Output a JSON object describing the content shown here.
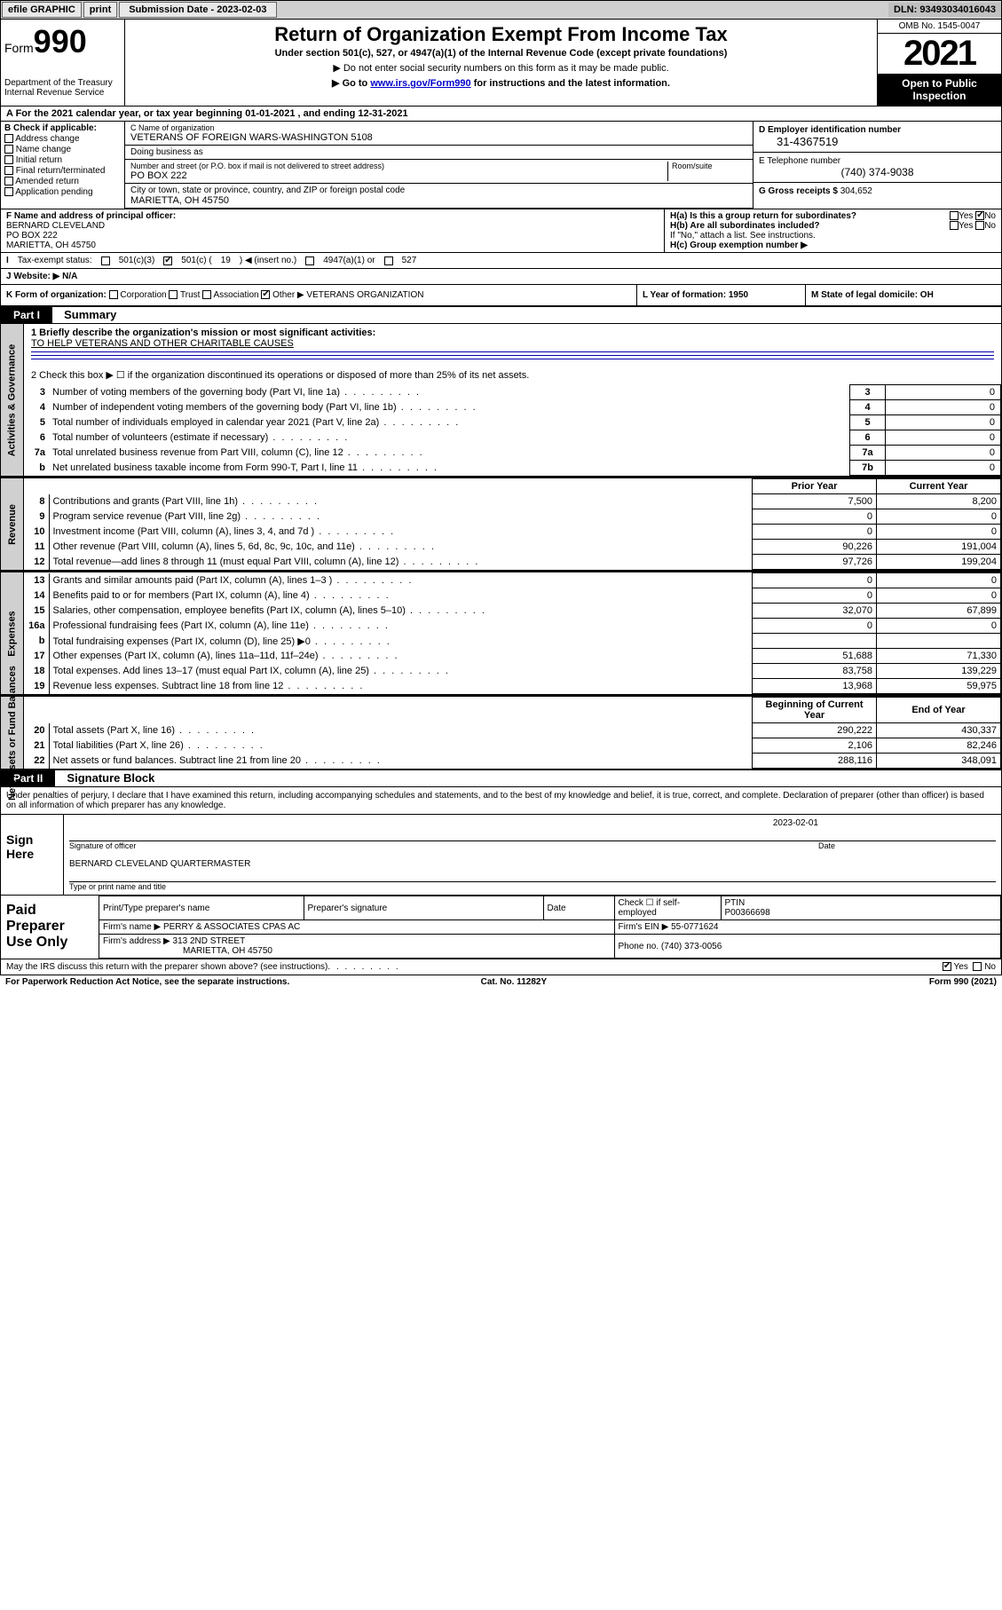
{
  "topbar": {
    "efile": "efile GRAPHIC",
    "print": "print",
    "sub_label": "Submission Date - 2023-02-03",
    "dln": "DLN: 93493034016043"
  },
  "header": {
    "form_prefix": "Form",
    "form_num": "990",
    "title": "Return of Organization Exempt From Income Tax",
    "subtitle": "Under section 501(c), 527, or 4947(a)(1) of the Internal Revenue Code (except private foundations)",
    "note1": "▶ Do not enter social security numbers on this form as it may be made public.",
    "note2_pre": "▶ Go to ",
    "note2_link": "www.irs.gov/Form990",
    "note2_post": " for instructions and the latest information.",
    "dept": "Department of the Treasury\nInternal Revenue Service",
    "omb": "OMB No. 1545-0047",
    "year": "2021",
    "open": "Open to Public Inspection"
  },
  "rowA": "A For the 2021 calendar year, or tax year beginning 01-01-2021   , and ending 12-31-2021",
  "colB": {
    "label": "B Check if applicable:",
    "items": [
      "Address change",
      "Name change",
      "Initial return",
      "Final return/terminated",
      "Amended return",
      "Application pending"
    ]
  },
  "colC": {
    "name_lbl": "C Name of organization",
    "name": "VETERANS OF FOREIGN WARS-WASHINGTON 5108",
    "dba_lbl": "Doing business as",
    "dba": "",
    "addr_lbl": "Number and street (or P.O. box if mail is not delivered to street address)",
    "room_lbl": "Room/suite",
    "addr": "PO BOX 222",
    "city_lbl": "City or town, state or province, country, and ZIP or foreign postal code",
    "city": "MARIETTA, OH  45750"
  },
  "colD": {
    "ein_lbl": "D Employer identification number",
    "ein": "31-4367519",
    "phone_lbl": "E Telephone number",
    "phone": "(740) 374-9038",
    "gross_lbl": "G Gross receipts $",
    "gross": "304,652"
  },
  "rowF": {
    "label": "F  Name and address of principal officer:",
    "name": "BERNARD CLEVELAND",
    "addr": "PO BOX 222",
    "city": "MARIETTA, OH  45750"
  },
  "rowH": {
    "ha": "H(a)  Is this a group return for subordinates?",
    "hb": "H(b)  Are all subordinates included?",
    "hb_note": "If \"No,\" attach a list. See instructions.",
    "hc": "H(c)  Group exemption number ▶",
    "yes": "Yes",
    "no": "No"
  },
  "rowI": {
    "label": "Tax-exempt status:",
    "opt1": "501(c)(3)",
    "opt2_a": "501(c) (",
    "opt2_n": "19",
    "opt2_b": ") ◀ (insert no.)",
    "opt3": "4947(a)(1) or",
    "opt4": "527"
  },
  "rowJ": {
    "label": "J  Website: ▶",
    "val": "N/A"
  },
  "rowK": {
    "label": "K Form of organization:",
    "opts": [
      "Corporation",
      "Trust",
      "Association",
      "Other ▶"
    ],
    "other_val": "VETERANS ORGANIZATION",
    "L": "L Year of formation: 1950",
    "M": "M State of legal domicile: OH"
  },
  "part1": {
    "tag": "Part I",
    "title": "Summary",
    "brief_lbl": "1  Briefly describe the organization's mission or most significant activities:",
    "mission": "TO HELP VETERANS AND OTHER CHARITABLE CAUSES",
    "line2": "2    Check this box ▶ ☐  if the organization discontinued its operations or disposed of more than 25% of its net assets.",
    "sideA": "Activities & Governance",
    "sideR": "Revenue",
    "sideE": "Expenses",
    "sideN": "Net Assets or Fund Balances",
    "gov_rows": [
      {
        "n": "3",
        "desc": "Number of voting members of the governing body (Part VI, line 1a)",
        "box": "3",
        "val": "0"
      },
      {
        "n": "4",
        "desc": "Number of independent voting members of the governing body (Part VI, line 1b)",
        "box": "4",
        "val": "0"
      },
      {
        "n": "5",
        "desc": "Total number of individuals employed in calendar year 2021 (Part V, line 2a)",
        "box": "5",
        "val": "0"
      },
      {
        "n": "6",
        "desc": "Total number of volunteers (estimate if necessary)",
        "box": "6",
        "val": "0"
      },
      {
        "n": "7a",
        "desc": "Total unrelated business revenue from Part VIII, column (C), line 12",
        "box": "7a",
        "val": "0"
      },
      {
        "n": "b",
        "desc": "Net unrelated business taxable income from Form 990-T, Part I, line 11",
        "box": "7b",
        "val": "0"
      }
    ],
    "col_py": "Prior Year",
    "col_cy": "Current Year",
    "rev_rows": [
      {
        "n": "8",
        "desc": "Contributions and grants (Part VIII, line 1h)",
        "py": "7,500",
        "cy": "8,200"
      },
      {
        "n": "9",
        "desc": "Program service revenue (Part VIII, line 2g)",
        "py": "0",
        "cy": "0"
      },
      {
        "n": "10",
        "desc": "Investment income (Part VIII, column (A), lines 3, 4, and 7d )",
        "py": "0",
        "cy": "0"
      },
      {
        "n": "11",
        "desc": "Other revenue (Part VIII, column (A), lines 5, 6d, 8c, 9c, 10c, and 11e)",
        "py": "90,226",
        "cy": "191,004"
      },
      {
        "n": "12",
        "desc": "Total revenue—add lines 8 through 11 (must equal Part VIII, column (A), line 12)",
        "py": "97,726",
        "cy": "199,204"
      }
    ],
    "exp_rows": [
      {
        "n": "13",
        "desc": "Grants and similar amounts paid (Part IX, column (A), lines 1–3 )",
        "py": "0",
        "cy": "0"
      },
      {
        "n": "14",
        "desc": "Benefits paid to or for members (Part IX, column (A), line 4)",
        "py": "0",
        "cy": "0"
      },
      {
        "n": "15",
        "desc": "Salaries, other compensation, employee benefits (Part IX, column (A), lines 5–10)",
        "py": "32,070",
        "cy": "67,899"
      },
      {
        "n": "16a",
        "desc": "Professional fundraising fees (Part IX, column (A), line 11e)",
        "py": "0",
        "cy": "0"
      },
      {
        "n": "b",
        "desc": "Total fundraising expenses (Part IX, column (D), line 25) ▶0",
        "py": "",
        "cy": "",
        "shade": true
      },
      {
        "n": "17",
        "desc": "Other expenses (Part IX, column (A), lines 11a–11d, 11f–24e)",
        "py": "51,688",
        "cy": "71,330"
      },
      {
        "n": "18",
        "desc": "Total expenses. Add lines 13–17 (must equal Part IX, column (A), line 25)",
        "py": "83,758",
        "cy": "139,229"
      },
      {
        "n": "19",
        "desc": "Revenue less expenses. Subtract line 18 from line 12",
        "py": "13,968",
        "cy": "59,975"
      }
    ],
    "col_bcy": "Beginning of Current Year",
    "col_eoy": "End of Year",
    "net_rows": [
      {
        "n": "20",
        "desc": "Total assets (Part X, line 16)",
        "py": "290,222",
        "cy": "430,337"
      },
      {
        "n": "21",
        "desc": "Total liabilities (Part X, line 26)",
        "py": "2,106",
        "cy": "82,246"
      },
      {
        "n": "22",
        "desc": "Net assets or fund balances. Subtract line 21 from line 20",
        "py": "288,116",
        "cy": "348,091"
      }
    ]
  },
  "part2": {
    "tag": "Part II",
    "title": "Signature Block",
    "decl": "Under penalties of perjury, I declare that I have examined this return, including accompanying schedules and statements, and to the best of my knowledge and belief, it is true, correct, and complete. Declaration of preparer (other than officer) is based on all information of which preparer has any knowledge.",
    "sign_here": "Sign Here",
    "sig_officer": "Signature of officer",
    "date_lbl": "Date",
    "sig_date": "2023-02-01",
    "officer_name": "BERNARD CLEVELAND QUARTERMASTER",
    "type_name": "Type or print name and title",
    "paid": "Paid Preparer Use Only",
    "prep_name_lbl": "Print/Type preparer's name",
    "prep_sig_lbl": "Preparer's signature",
    "check_lbl": "Check ☐ if self-employed",
    "ptin_lbl": "PTIN",
    "ptin": "P00366698",
    "firm_name_lbl": "Firm's name    ▶",
    "firm_name": "PERRY & ASSOCIATES CPAS AC",
    "firm_ein_lbl": "Firm's EIN ▶",
    "firm_ein": "55-0771624",
    "firm_addr_lbl": "Firm's address ▶",
    "firm_addr": "313 2ND STREET",
    "firm_city": "MARIETTA, OH  45750",
    "firm_phone_lbl": "Phone no.",
    "firm_phone": "(740) 373-0056",
    "discuss": "May the IRS discuss this return with the preparer shown above? (see instructions)",
    "yes": "Yes",
    "no": "No"
  },
  "footer": {
    "paperwork": "For Paperwork Reduction Act Notice, see the separate instructions.",
    "cat": "Cat. No. 11282Y",
    "form": "Form 990 (2021)"
  }
}
